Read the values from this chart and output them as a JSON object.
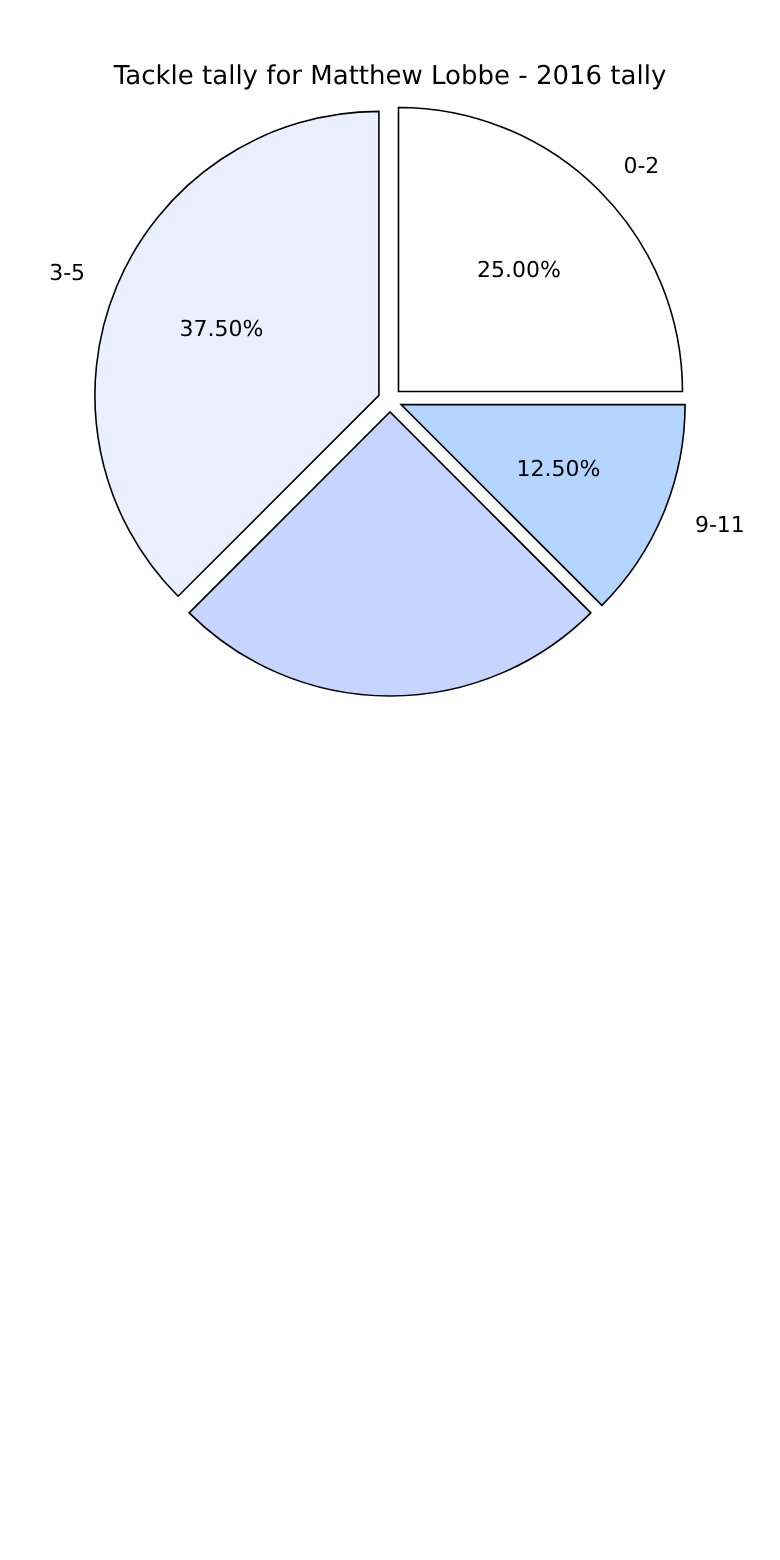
{
  "chart_data": {
    "type": "pie",
    "title": "Tackle tally for Matthew Lobbe - 2016 tally",
    "categories": [
      "0-2",
      "9-11",
      null,
      "3-5"
    ],
    "values": [
      25,
      12.5,
      25,
      37.5
    ],
    "colors": [
      "#ffffff",
      "#b3d5ff",
      "#c6d5ff",
      "#eaf0ff"
    ],
    "value_labels": [
      "25.00%",
      "12.50%",
      null,
      "37.50%"
    ]
  }
}
